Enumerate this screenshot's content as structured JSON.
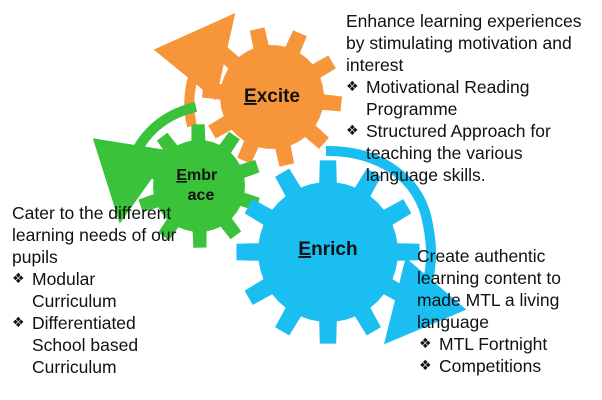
{
  "gears": {
    "excite": {
      "first_letter": "E",
      "rest": "xcite",
      "color": "#F7953A"
    },
    "embrace": {
      "line1_first": "E",
      "line1_rest": "mbr",
      "line2": "ace",
      "color": "#39C23A"
    },
    "enrich": {
      "first_letter": "E",
      "rest": "nrich",
      "color": "#1ABEF0"
    }
  },
  "arrow_colors": {
    "orange": "#F7953A",
    "green": "#39C23A",
    "blue": "#1ABEF0"
  },
  "excite_block": {
    "description": "Enhance learning experiences by stimulating motivation and interest",
    "bullets": [
      "Motivational Reading Programme",
      "Structured Approach for teaching the various language skills."
    ]
  },
  "embrace_block": {
    "description": "Cater to the different learning needs of our pupils",
    "bullets": [
      "Modular Curriculum",
      "Differentiated School based Curriculum"
    ]
  },
  "enrich_block": {
    "description": "Create authentic learning content to made MTL a living language",
    "bullets": [
      "MTL Fortnight",
      "Competitions"
    ]
  },
  "bullet_glyph": "❖"
}
